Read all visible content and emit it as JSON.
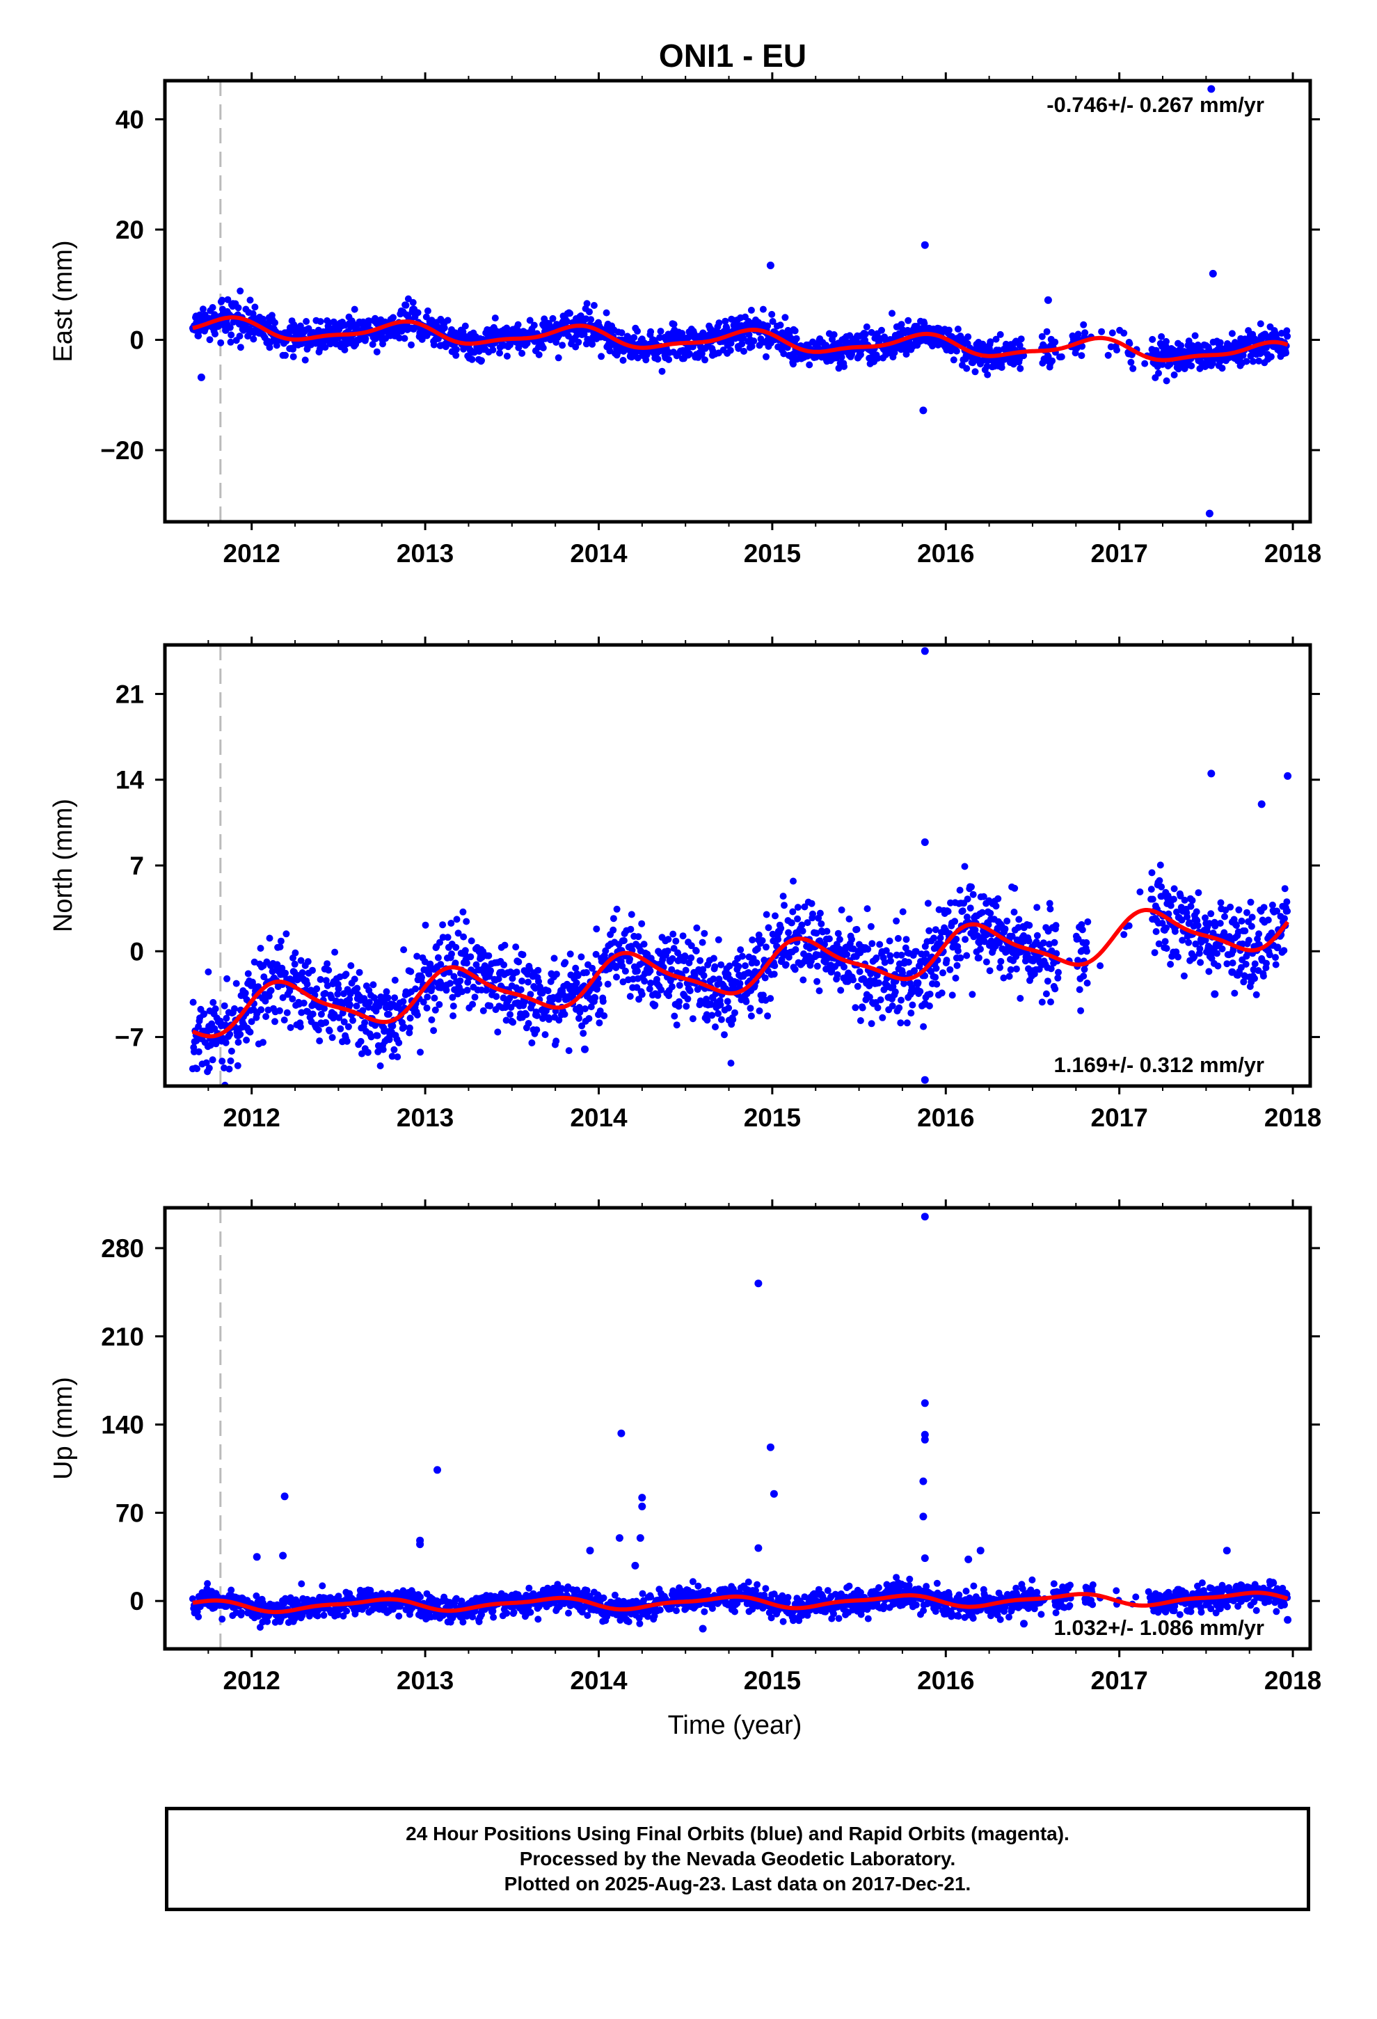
{
  "title": "ONI1 - EU",
  "xlabel": "Time (year)",
  "colors": {
    "final_points": "#0000ff",
    "fit_line": "#ff0000",
    "event_line": "#bbbbbb",
    "axes": "#000000"
  },
  "footer": {
    "line1": "24 Hour Positions Using Final Orbits (blue) and Rapid Orbits (magenta).",
    "line2": "Processed by the Nevada Geodetic Laboratory.",
    "line3": "Plotted on 2025-Aug-23. Last data on 2017-Dec-21."
  },
  "chart_data": [
    {
      "type": "scatter",
      "ylabel": "East (mm)",
      "rate": "-0.746+/- 0.267 mm/yr",
      "rate_position": "top-right",
      "xlim": [
        2011.5,
        2018.1
      ],
      "ylim": [
        -33,
        47
      ],
      "xticks": [
        "2012",
        "2013",
        "2014",
        "2015",
        "2016",
        "2017",
        "2018"
      ],
      "yticks": [
        "40",
        "20",
        "0",
        "−20"
      ],
      "event_line_x": 2011.82,
      "data_range": [
        2011.66,
        2017.97
      ],
      "gaps": [
        [
          2016.45,
          2016.55
        ],
        [
          2016.62,
          2016.72
        ],
        [
          2016.8,
          2017.05
        ],
        [
          2017.08,
          2017.18
        ]
      ],
      "noise_sd": 1.5,
      "fit": {
        "offset": -0.2,
        "rate": -0.746,
        "annual": 1.6,
        "phase": 0.4,
        "wiggle": 0.6
      },
      "outliers": [
        [
          2017.53,
          45.5
        ],
        [
          2015.88,
          17.2
        ],
        [
          2014.99,
          13.5
        ],
        [
          2017.54,
          12.0
        ],
        [
          2016.59,
          7.2
        ],
        [
          2015.87,
          -12.8
        ],
        [
          2017.52,
          -31.5
        ],
        [
          2011.71,
          -6.8
        ]
      ]
    },
    {
      "type": "scatter",
      "ylabel": "North (mm)",
      "rate": "1.169+/- 0.312 mm/yr",
      "rate_position": "bottom-right",
      "xlim": [
        2011.5,
        2018.1
      ],
      "ylim": [
        -11,
        25
      ],
      "xticks": [
        "2012",
        "2013",
        "2014",
        "2015",
        "2016",
        "2017",
        "2018"
      ],
      "yticks": [
        "21",
        "14",
        "7",
        "0",
        "−7"
      ],
      "event_line_x": 2011.82,
      "data_range": [
        2011.66,
        2017.97
      ],
      "gaps": [
        [
          2016.65,
          2016.75
        ],
        [
          2016.82,
          2017.18
        ]
      ],
      "noise_sd": 1.7,
      "fit": {
        "offset": -1.5,
        "rate": 1.169,
        "annual": 1.8,
        "phase": 0.05,
        "wiggle": 0.5
      },
      "outliers": [
        [
          2015.88,
          24.5
        ],
        [
          2017.53,
          14.5
        ],
        [
          2017.97,
          14.3
        ],
        [
          2017.82,
          12.0
        ],
        [
          2015.88,
          8.9
        ],
        [
          2013.92,
          -8.0
        ],
        [
          2017.55,
          -3.5
        ],
        [
          2017.65,
          -1.7
        ],
        [
          2011.88,
          -6.2
        ],
        [
          2015.88,
          -10.5
        ],
        [
          2015.88,
          -4.3
        ]
      ]
    },
    {
      "type": "scatter",
      "ylabel": "Up (mm)",
      "rate": "1.032+/- 1.086 mm/yr",
      "rate_position": "bottom-right",
      "xlim": [
        2011.5,
        2018.1
      ],
      "ylim": [
        -38,
        312
      ],
      "xticks": [
        "2012",
        "2013",
        "2014",
        "2015",
        "2016",
        "2017",
        "2018"
      ],
      "yticks": [
        "280",
        "210",
        "140",
        "70",
        "0"
      ],
      "event_line_x": 2011.82,
      "data_range": [
        2011.66,
        2017.97
      ],
      "gaps": [
        [
          2016.55,
          2016.62
        ],
        [
          2016.72,
          2016.8
        ],
        [
          2016.85,
          2017.18
        ]
      ],
      "noise_sd": 5.0,
      "fit": {
        "offset": -1.0,
        "rate": 1.032,
        "annual": 4.0,
        "phase": 0.55,
        "wiggle": 1.5
      },
      "outliers": [
        [
          2015.88,
          305
        ],
        [
          2014.92,
          252
        ],
        [
          2015.88,
          157
        ],
        [
          2015.88,
          132
        ],
        [
          2015.88,
          128
        ],
        [
          2014.13,
          133
        ],
        [
          2014.99,
          122
        ],
        [
          2013.07,
          104
        ],
        [
          2015.87,
          95
        ],
        [
          2015.01,
          85
        ],
        [
          2014.25,
          82
        ],
        [
          2014.25,
          75
        ],
        [
          2012.19,
          83
        ],
        [
          2015.87,
          67
        ],
        [
          2014.12,
          50
        ],
        [
          2014.24,
          50
        ],
        [
          2014.92,
          42
        ],
        [
          2012.97,
          48
        ],
        [
          2012.97,
          45
        ],
        [
          2013.95,
          40
        ],
        [
          2014.21,
          28
        ],
        [
          2012.03,
          35
        ],
        [
          2012.18,
          36
        ],
        [
          2016.2,
          40
        ],
        [
          2016.13,
          33
        ],
        [
          2017.62,
          40
        ],
        [
          2014.6,
          -22
        ],
        [
          2016.45,
          -18
        ],
        [
          2017.97,
          -15
        ],
        [
          2015.88,
          34
        ]
      ]
    }
  ]
}
